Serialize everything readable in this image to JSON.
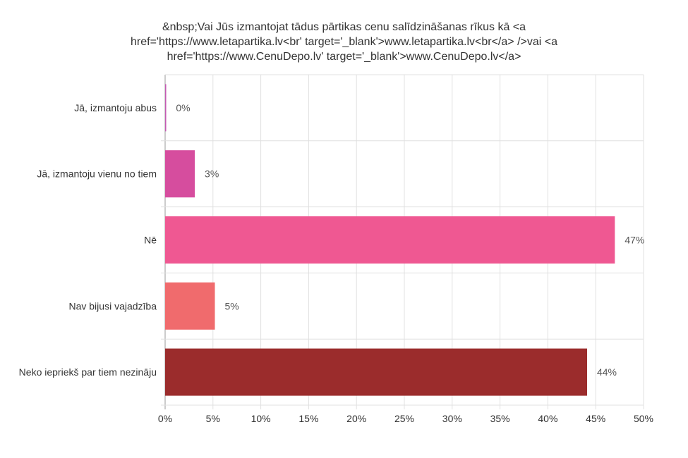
{
  "chart_data": {
    "type": "bar",
    "orientation": "horizontal",
    "title": "&nbsp;Vai Jūs izmantojat tādus pārtikas cenu salīdzināšanas rīkus kā <a href='https://www.letapartika.lv<br' target='_blank'>www.letapartika.lv<br</a> />vai <a href='https://www.CenuDepo.lv' target='_blank'>www.CenuDepo.lv</a>",
    "title_lines": [
      "&nbsp;Vai Jūs izmantojat tādus pārtikas cenu salīdzināšanas rīkus kā <a",
      "href='https://www.letapartika.lv<br' target='_blank'>www.letapartika.lv<br</a> />vai <a",
      "href='https://www.CenuDepo.lv' target='_blank'>www.CenuDepo.lv</a>"
    ],
    "categories": [
      "Jā, izmantoju abus",
      "Jā, izmantoju vienu no tiem",
      "Nē",
      "Nav bijusi vajadzība",
      "Neko iepriekš par tiem nezināju"
    ],
    "values": [
      0.1,
      3.1,
      47,
      5.2,
      44.1
    ],
    "data_labels": [
      "0%",
      "3%",
      "47%",
      "5%",
      "44%"
    ],
    "colors": [
      "#c45ab3",
      "#d64d9e",
      "#ef5892",
      "#f06b6d",
      "#9b2c2c"
    ],
    "xlim": [
      0,
      50
    ],
    "xticks": [
      "0%",
      "5%",
      "10%",
      "15%",
      "20%",
      "25%",
      "30%",
      "35%",
      "40%",
      "45%",
      "50%"
    ],
    "grid": true,
    "legend": "none"
  }
}
